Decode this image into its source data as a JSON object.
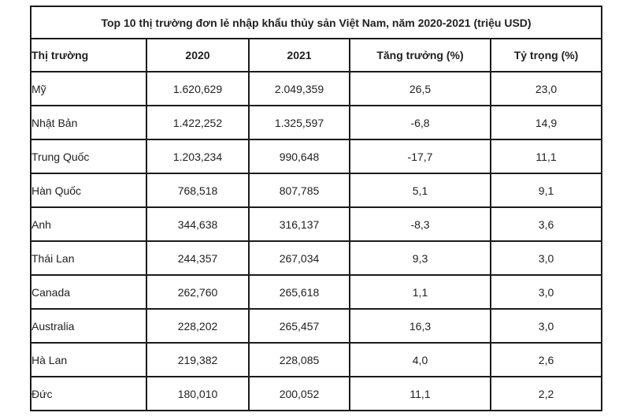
{
  "table": {
    "title": "Top 10 thị trường đơn lẻ nhập khẩu thủy sản Việt Nam, năm 2020-2021 (triệu USD)",
    "columns": [
      "Thị trường",
      "2020",
      "2021",
      "Tăng trưởng (%)",
      "Tỷ trọng (%)"
    ],
    "rows": [
      [
        "Mỹ",
        "1.620,629",
        "2.049,359",
        "26,5",
        "23,0"
      ],
      [
        "Nhật Bản",
        "1.422,252",
        "1.325,597",
        "-6,8",
        "14,9"
      ],
      [
        "Trung Quốc",
        "1.203,234",
        "990,648",
        "-17,7",
        "11,1"
      ],
      [
        "Hàn Quốc",
        "768,518",
        "807,785",
        "5,1",
        "9,1"
      ],
      [
        "Anh",
        "344,638",
        "316,137",
        "-8,3",
        "3,6"
      ],
      [
        "Thái Lan",
        "244,357",
        "267,034",
        "9,3",
        "3,0"
      ],
      [
        "Canada",
        "262,760",
        "265,618",
        "1,1",
        "3,0"
      ],
      [
        "Australia",
        "228,202",
        "265,457",
        "16,3",
        "3,0"
      ],
      [
        "Hà Lan",
        "219,382",
        "228,085",
        "4,0",
        "2,6"
      ],
      [
        "Đức",
        "180,010",
        "200,052",
        "11,1",
        "2,2"
      ]
    ]
  },
  "colors": {
    "border": "#1b1b1b",
    "text": "#212121",
    "background": "#ffffff"
  },
  "chart_data": {
    "type": "table",
    "title": "Top 10 thị trường đơn lẻ nhập khẩu thủy sản Việt Nam, năm 2020-2021 (triệu USD)",
    "unit": "triệu USD",
    "categories": [
      "Mỹ",
      "Nhật Bản",
      "Trung Quốc",
      "Hàn Quốc",
      "Anh",
      "Thái Lan",
      "Canada",
      "Australia",
      "Hà Lan",
      "Đức"
    ],
    "series": [
      {
        "name": "2020",
        "values": [
          1620.629,
          1422.252,
          1203.234,
          768.518,
          344.638,
          244.357,
          262.76,
          228.202,
          219.382,
          180.01
        ]
      },
      {
        "name": "2021",
        "values": [
          2049.359,
          1325.597,
          990.648,
          807.785,
          316.137,
          267.034,
          265.618,
          265.457,
          228.085,
          200.052
        ]
      },
      {
        "name": "Tăng trưởng (%)",
        "values": [
          26.5,
          -6.8,
          -17.7,
          5.1,
          -8.3,
          9.3,
          1.1,
          16.3,
          4.0,
          11.1
        ]
      },
      {
        "name": "Tỷ trọng (%)",
        "values": [
          23.0,
          14.9,
          11.1,
          9.1,
          3.6,
          3.0,
          3.0,
          3.0,
          2.6,
          2.2
        ]
      }
    ],
    "layout": {
      "grid": "full-borders",
      "first_column_align": "left",
      "value_columns_align": "center"
    }
  }
}
